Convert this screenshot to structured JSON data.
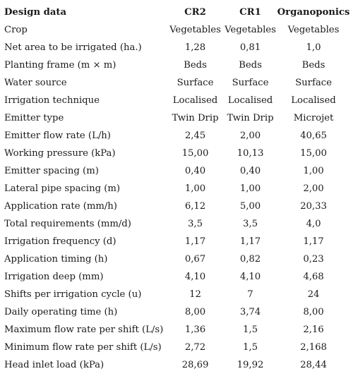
{
  "table": {
    "headers": {
      "label": "Design data",
      "cr2": "CR2",
      "cr1": "CR1",
      "organoponics": "Organoponics"
    },
    "rows": [
      {
        "label": "Crop",
        "cr2": "Vegetables",
        "cr1": "Vegetables",
        "organoponics": "Vegetables"
      },
      {
        "label": "Net area to be irrigated (ha.)",
        "cr2": "1,28",
        "cr1": "0,81",
        "organoponics": "1,0"
      },
      {
        "label": "Planting frame (m × m)",
        "cr2": "Beds",
        "cr1": "Beds",
        "organoponics": "Beds"
      },
      {
        "label": "Water source",
        "cr2": "Surface",
        "cr1": "Surface",
        "organoponics": "Surface"
      },
      {
        "label": "Irrigation technique",
        "cr2": "Localised",
        "cr1": "Localised",
        "organoponics": "Localised"
      },
      {
        "label": "Emitter type",
        "cr2": "Twin Drip",
        "cr1": "Twin Drip",
        "organoponics": "Microjet"
      },
      {
        "label": "Emitter flow rate (L/h)",
        "cr2": "2,45",
        "cr1": "2,00",
        "organoponics": "40,65"
      },
      {
        "label": "Working pressure (kPa)",
        "cr2": "15,00",
        "cr1": "10,13",
        "organoponics": "15,00"
      },
      {
        "label": "Emitter spacing (m)",
        "cr2": "0,40",
        "cr1": "0,40",
        "organoponics": "1,00"
      },
      {
        "label": "Lateral pipe spacing (m)",
        "cr2": "1,00",
        "cr1": "1,00",
        "organoponics": "2,00"
      },
      {
        "label": "Application rate (mm/h)",
        "cr2": "6,12",
        "cr1": "5,00",
        "organoponics": "20,33"
      },
      {
        "label": "Total requirements (mm/d)",
        "cr2": "3,5",
        "cr1": "3,5",
        "organoponics": "4,0"
      },
      {
        "label": "Irrigation frequency (d)",
        "cr2": "1,17",
        "cr1": "1,17",
        "organoponics": "1,17"
      },
      {
        "label": "Application timing (h)",
        "cr2": "0,67",
        "cr1": "0,82",
        "organoponics": "0,23"
      },
      {
        "label": "Irrigation deep (mm)",
        "cr2": "4,10",
        "cr1": "4,10",
        "organoponics": "4,68"
      },
      {
        "label": "Shifts per irrigation cycle (u)",
        "cr2": "12",
        "cr1": "7",
        "organoponics": "24"
      },
      {
        "label": "Daily operating time (h)",
        "cr2": "8,00",
        "cr1": "3,74",
        "organoponics": "8,00"
      },
      {
        "label": "Maximum flow rate per shift (L/s)",
        "cr2": "1,36",
        "cr1": "1,5",
        "organoponics": "2,16"
      },
      {
        "label": "Minimum flow rate per shift (L/s)",
        "cr2": "2,72",
        "cr1": "1,5",
        "organoponics": "2,168"
      },
      {
        "label": "Head inlet load (kPa)",
        "cr2": "28,69",
        "cr1": "19,92",
        "organoponics": "28,44"
      }
    ]
  }
}
